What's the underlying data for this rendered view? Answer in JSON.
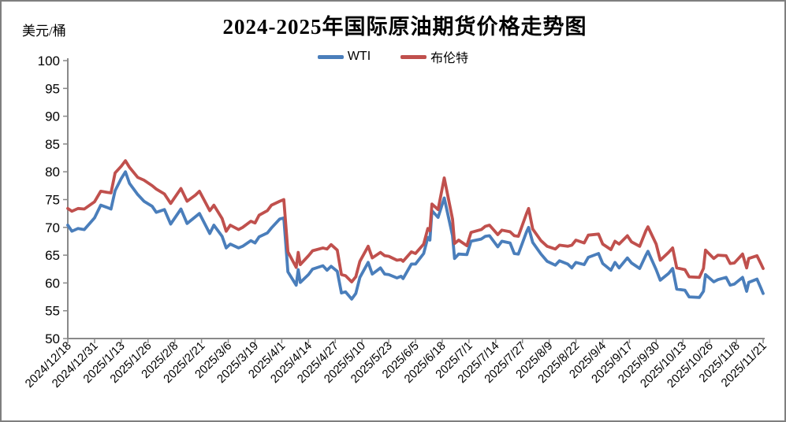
{
  "header": {
    "title": "2024-2025年国际原油期货价格走势图",
    "y_axis_unit": "美元/桶"
  },
  "legend": {
    "position": "top-center",
    "items": [
      {
        "label": "WTI",
        "color": "#4a7ebb"
      },
      {
        "label": "布伦特",
        "color": "#c0504d"
      }
    ]
  },
  "chart_data": {
    "type": "line",
    "title": "2024-2025年国际原油期货价格走势图",
    "ylabel": "美元/桶",
    "xlabel": "",
    "ylim": [
      50,
      100
    ],
    "y_tick_step": 5,
    "y_ticks": [
      50,
      55,
      60,
      65,
      70,
      75,
      80,
      85,
      90,
      95,
      100
    ],
    "grid": false,
    "legend_position": "top-center",
    "axis_color": "#898989",
    "tick_label_color": "#000000",
    "x_tick_interval_days": 13,
    "x_tick_labels": [
      "2024/12/18",
      "2024/12/31",
      "2025/1/13",
      "2025/1/26",
      "2025/2/8",
      "2025/2/21",
      "2025/3/6",
      "2025/3/19",
      "2025/4/1",
      "2025/4/14",
      "2025/4/27",
      "2025/5/10",
      "2025/5/23",
      "2025/6/5",
      "2025/6/18",
      "2025/7/1",
      "2025/7/14",
      "2025/7/27",
      "2025/8/9",
      "2025/8/22",
      "2025/9/4",
      "2025/9/17",
      "2025/9/30",
      "2025/10/13",
      "2025/10/26",
      "2025/11/8",
      "2025/11/21"
    ],
    "series": [
      {
        "name": "WTI",
        "color": "#4a7ebb",
        "points": [
          [
            "2024/12/18",
            70.4
          ],
          [
            "2024/12/20",
            69.3
          ],
          [
            "2024/12/23",
            69.8
          ],
          [
            "2024/12/26",
            69.6
          ],
          [
            "2024/12/31",
            71.7
          ],
          [
            "2025/1/3",
            74.0
          ],
          [
            "2025/1/6",
            73.6
          ],
          [
            "2025/1/8",
            73.3
          ],
          [
            "2025/1/10",
            76.6
          ],
          [
            "2025/1/13",
            78.8
          ],
          [
            "2025/1/15",
            80.0
          ],
          [
            "2025/1/17",
            77.9
          ],
          [
            "2025/1/21",
            75.9
          ],
          [
            "2025/1/24",
            74.7
          ],
          [
            "2025/1/28",
            73.8
          ],
          [
            "2025/1/30",
            72.7
          ],
          [
            "2025/2/3",
            73.2
          ],
          [
            "2025/2/6",
            70.6
          ],
          [
            "2025/2/11",
            73.3
          ],
          [
            "2025/2/14",
            70.7
          ],
          [
            "2025/2/18",
            71.9
          ],
          [
            "2025/2/20",
            72.5
          ],
          [
            "2025/2/25",
            68.9
          ],
          [
            "2025/2/27",
            70.4
          ],
          [
            "2025/3/3",
            68.4
          ],
          [
            "2025/3/5",
            66.3
          ],
          [
            "2025/3/7",
            67.0
          ],
          [
            "2025/3/11",
            66.3
          ],
          [
            "2025/3/13",
            66.6
          ],
          [
            "2025/3/17",
            67.6
          ],
          [
            "2025/3/19",
            67.2
          ],
          [
            "2025/3/21",
            68.3
          ],
          [
            "2025/3/25",
            69.0
          ],
          [
            "2025/3/27",
            69.9
          ],
          [
            "2025/3/31",
            71.5
          ],
          [
            "2025/4/2",
            71.7
          ],
          [
            "2025/4/4",
            62.0
          ],
          [
            "2025/4/8",
            59.6
          ],
          [
            "2025/4/9",
            62.4
          ],
          [
            "2025/4/10",
            60.1
          ],
          [
            "2025/4/14",
            61.5
          ],
          [
            "2025/4/16",
            62.5
          ],
          [
            "2025/4/21",
            63.1
          ],
          [
            "2025/4/23",
            62.3
          ],
          [
            "2025/4/25",
            63.0
          ],
          [
            "2025/4/28",
            62.1
          ],
          [
            "2025/4/30",
            58.2
          ],
          [
            "2025/5/2",
            58.4
          ],
          [
            "2025/5/5",
            57.1
          ],
          [
            "2025/5/7",
            58.1
          ],
          [
            "2025/5/9",
            61.0
          ],
          [
            "2025/5/13",
            63.7
          ],
          [
            "2025/5/15",
            61.6
          ],
          [
            "2025/5/19",
            62.7
          ],
          [
            "2025/5/21",
            61.6
          ],
          [
            "2025/5/23",
            61.5
          ],
          [
            "2025/5/27",
            60.9
          ],
          [
            "2025/5/29",
            61.2
          ],
          [
            "2025/5/30",
            60.8
          ],
          [
            "2025/6/3",
            63.4
          ],
          [
            "2025/6/5",
            63.4
          ],
          [
            "2025/6/9",
            65.3
          ],
          [
            "2025/6/11",
            68.2
          ],
          [
            "2025/6/12",
            67.7
          ],
          [
            "2025/6/13",
            73.0
          ],
          [
            "2025/6/16",
            71.8
          ],
          [
            "2025/6/19",
            75.3
          ],
          [
            "2025/6/23",
            68.5
          ],
          [
            "2025/6/24",
            64.4
          ],
          [
            "2025/6/26",
            65.2
          ],
          [
            "2025/6/30",
            65.1
          ],
          [
            "2025/7/2",
            67.5
          ],
          [
            "2025/7/7",
            67.9
          ],
          [
            "2025/7/9",
            68.4
          ],
          [
            "2025/7/11",
            68.5
          ],
          [
            "2025/7/15",
            66.5
          ],
          [
            "2025/7/17",
            67.5
          ],
          [
            "2025/7/21",
            67.2
          ],
          [
            "2025/7/23",
            65.3
          ],
          [
            "2025/7/25",
            65.2
          ],
          [
            "2025/7/29",
            69.2
          ],
          [
            "2025/7/30",
            70.0
          ],
          [
            "2025/8/1",
            67.3
          ],
          [
            "2025/8/5",
            65.2
          ],
          [
            "2025/8/8",
            63.9
          ],
          [
            "2025/8/12",
            63.2
          ],
          [
            "2025/8/14",
            64.0
          ],
          [
            "2025/8/18",
            63.4
          ],
          [
            "2025/8/20",
            62.7
          ],
          [
            "2025/8/22",
            63.7
          ],
          [
            "2025/8/26",
            63.3
          ],
          [
            "2025/8/28",
            64.6
          ],
          [
            "2025/9/2",
            65.3
          ],
          [
            "2025/9/4",
            63.5
          ],
          [
            "2025/9/8",
            62.3
          ],
          [
            "2025/9/10",
            63.7
          ],
          [
            "2025/9/12",
            62.7
          ],
          [
            "2025/9/16",
            64.5
          ],
          [
            "2025/9/18",
            63.6
          ],
          [
            "2025/9/22",
            62.6
          ],
          [
            "2025/9/25",
            65.0
          ],
          [
            "2025/9/26",
            65.7
          ],
          [
            "2025/9/30",
            62.4
          ],
          [
            "2025/10/2",
            60.5
          ],
          [
            "2025/10/6",
            61.7
          ],
          [
            "2025/10/8",
            62.6
          ],
          [
            "2025/10/10",
            58.9
          ],
          [
            "2025/10/14",
            58.7
          ],
          [
            "2025/10/16",
            57.5
          ],
          [
            "2025/10/21",
            57.4
          ],
          [
            "2025/10/23",
            58.5
          ],
          [
            "2025/10/24",
            61.5
          ],
          [
            "2025/10/28",
            60.2
          ],
          [
            "2025/10/30",
            60.6
          ],
          [
            "2025/11/3",
            61.0
          ],
          [
            "2025/11/5",
            59.6
          ],
          [
            "2025/11/7",
            59.8
          ],
          [
            "2025/11/11",
            61.0
          ],
          [
            "2025/11/13",
            58.5
          ],
          [
            "2025/11/14",
            60.1
          ],
          [
            "2025/11/18",
            60.7
          ],
          [
            "2025/11/20",
            59.0
          ],
          [
            "2025/11/21",
            58.1
          ]
        ]
      },
      {
        "name": "布伦特",
        "color": "#c0504d",
        "points": [
          [
            "2024/12/18",
            73.4
          ],
          [
            "2024/12/20",
            72.9
          ],
          [
            "2024/12/23",
            73.4
          ],
          [
            "2024/12/26",
            73.3
          ],
          [
            "2024/12/31",
            74.6
          ],
          [
            "2025/1/3",
            76.5
          ],
          [
            "2025/1/6",
            76.3
          ],
          [
            "2025/1/8",
            76.2
          ],
          [
            "2025/1/10",
            79.8
          ],
          [
            "2025/1/13",
            81.0
          ],
          [
            "2025/1/15",
            82.0
          ],
          [
            "2025/1/17",
            80.8
          ],
          [
            "2025/1/21",
            79.0
          ],
          [
            "2025/1/24",
            78.5
          ],
          [
            "2025/1/28",
            77.5
          ],
          [
            "2025/1/30",
            76.9
          ],
          [
            "2025/2/3",
            76.0
          ],
          [
            "2025/2/6",
            74.3
          ],
          [
            "2025/2/11",
            77.0
          ],
          [
            "2025/2/14",
            74.7
          ],
          [
            "2025/2/18",
            75.8
          ],
          [
            "2025/2/20",
            76.5
          ],
          [
            "2025/2/25",
            73.0
          ],
          [
            "2025/2/27",
            74.0
          ],
          [
            "2025/3/3",
            71.6
          ],
          [
            "2025/3/5",
            69.3
          ],
          [
            "2025/3/7",
            70.4
          ],
          [
            "2025/3/11",
            69.6
          ],
          [
            "2025/3/13",
            70.0
          ],
          [
            "2025/3/17",
            71.1
          ],
          [
            "2025/3/19",
            70.8
          ],
          [
            "2025/3/21",
            72.2
          ],
          [
            "2025/3/25",
            73.0
          ],
          [
            "2025/3/27",
            74.0
          ],
          [
            "2025/3/31",
            74.7
          ],
          [
            "2025/4/2",
            75.0
          ],
          [
            "2025/4/4",
            65.6
          ],
          [
            "2025/4/8",
            62.8
          ],
          [
            "2025/4/9",
            65.5
          ],
          [
            "2025/4/10",
            63.3
          ],
          [
            "2025/4/14",
            64.9
          ],
          [
            "2025/4/16",
            65.8
          ],
          [
            "2025/4/21",
            66.3
          ],
          [
            "2025/4/23",
            66.1
          ],
          [
            "2025/4/25",
            66.9
          ],
          [
            "2025/4/28",
            65.9
          ],
          [
            "2025/4/30",
            61.5
          ],
          [
            "2025/5/2",
            61.3
          ],
          [
            "2025/5/5",
            60.2
          ],
          [
            "2025/5/7",
            61.1
          ],
          [
            "2025/5/9",
            63.9
          ],
          [
            "2025/5/13",
            66.6
          ],
          [
            "2025/5/15",
            64.5
          ],
          [
            "2025/5/19",
            65.5
          ],
          [
            "2025/5/21",
            64.9
          ],
          [
            "2025/5/23",
            64.8
          ],
          [
            "2025/5/27",
            64.1
          ],
          [
            "2025/5/29",
            64.2
          ],
          [
            "2025/5/30",
            63.9
          ],
          [
            "2025/6/3",
            65.6
          ],
          [
            "2025/6/5",
            65.3
          ],
          [
            "2025/6/9",
            67.0
          ],
          [
            "2025/6/11",
            69.8
          ],
          [
            "2025/6/12",
            69.4
          ],
          [
            "2025/6/13",
            74.2
          ],
          [
            "2025/6/16",
            73.2
          ],
          [
            "2025/6/19",
            78.9
          ],
          [
            "2025/6/23",
            71.5
          ],
          [
            "2025/6/24",
            67.1
          ],
          [
            "2025/6/26",
            67.7
          ],
          [
            "2025/6/30",
            66.7
          ],
          [
            "2025/7/2",
            69.1
          ],
          [
            "2025/7/7",
            69.6
          ],
          [
            "2025/7/9",
            70.2
          ],
          [
            "2025/7/11",
            70.4
          ],
          [
            "2025/7/15",
            68.7
          ],
          [
            "2025/7/17",
            69.5
          ],
          [
            "2025/7/21",
            69.2
          ],
          [
            "2025/7/23",
            68.5
          ],
          [
            "2025/7/25",
            68.4
          ],
          [
            "2025/7/29",
            72.5
          ],
          [
            "2025/7/30",
            73.4
          ],
          [
            "2025/8/1",
            69.7
          ],
          [
            "2025/8/5",
            67.6
          ],
          [
            "2025/8/8",
            66.6
          ],
          [
            "2025/8/12",
            66.1
          ],
          [
            "2025/8/14",
            66.8
          ],
          [
            "2025/8/18",
            66.6
          ],
          [
            "2025/8/20",
            66.8
          ],
          [
            "2025/8/22",
            67.7
          ],
          [
            "2025/8/26",
            67.2
          ],
          [
            "2025/8/28",
            68.6
          ],
          [
            "2025/9/2",
            68.8
          ],
          [
            "2025/9/4",
            67.0
          ],
          [
            "2025/9/8",
            66.0
          ],
          [
            "2025/9/10",
            67.5
          ],
          [
            "2025/9/12",
            67.0
          ],
          [
            "2025/9/16",
            68.5
          ],
          [
            "2025/9/18",
            67.4
          ],
          [
            "2025/9/22",
            66.6
          ],
          [
            "2025/9/25",
            69.4
          ],
          [
            "2025/9/26",
            70.1
          ],
          [
            "2025/9/30",
            67.0
          ],
          [
            "2025/10/2",
            64.1
          ],
          [
            "2025/10/6",
            65.5
          ],
          [
            "2025/10/8",
            66.3
          ],
          [
            "2025/10/10",
            62.7
          ],
          [
            "2025/10/14",
            62.4
          ],
          [
            "2025/10/16",
            61.1
          ],
          [
            "2025/10/21",
            61.0
          ],
          [
            "2025/10/23",
            62.6
          ],
          [
            "2025/10/24",
            65.9
          ],
          [
            "2025/10/28",
            64.4
          ],
          [
            "2025/10/30",
            65.0
          ],
          [
            "2025/11/3",
            64.9
          ],
          [
            "2025/11/5",
            63.5
          ],
          [
            "2025/11/7",
            63.6
          ],
          [
            "2025/11/11",
            65.2
          ],
          [
            "2025/11/13",
            62.7
          ],
          [
            "2025/11/14",
            64.4
          ],
          [
            "2025/11/18",
            64.9
          ],
          [
            "2025/11/20",
            63.4
          ],
          [
            "2025/11/21",
            62.6
          ]
        ]
      }
    ]
  }
}
